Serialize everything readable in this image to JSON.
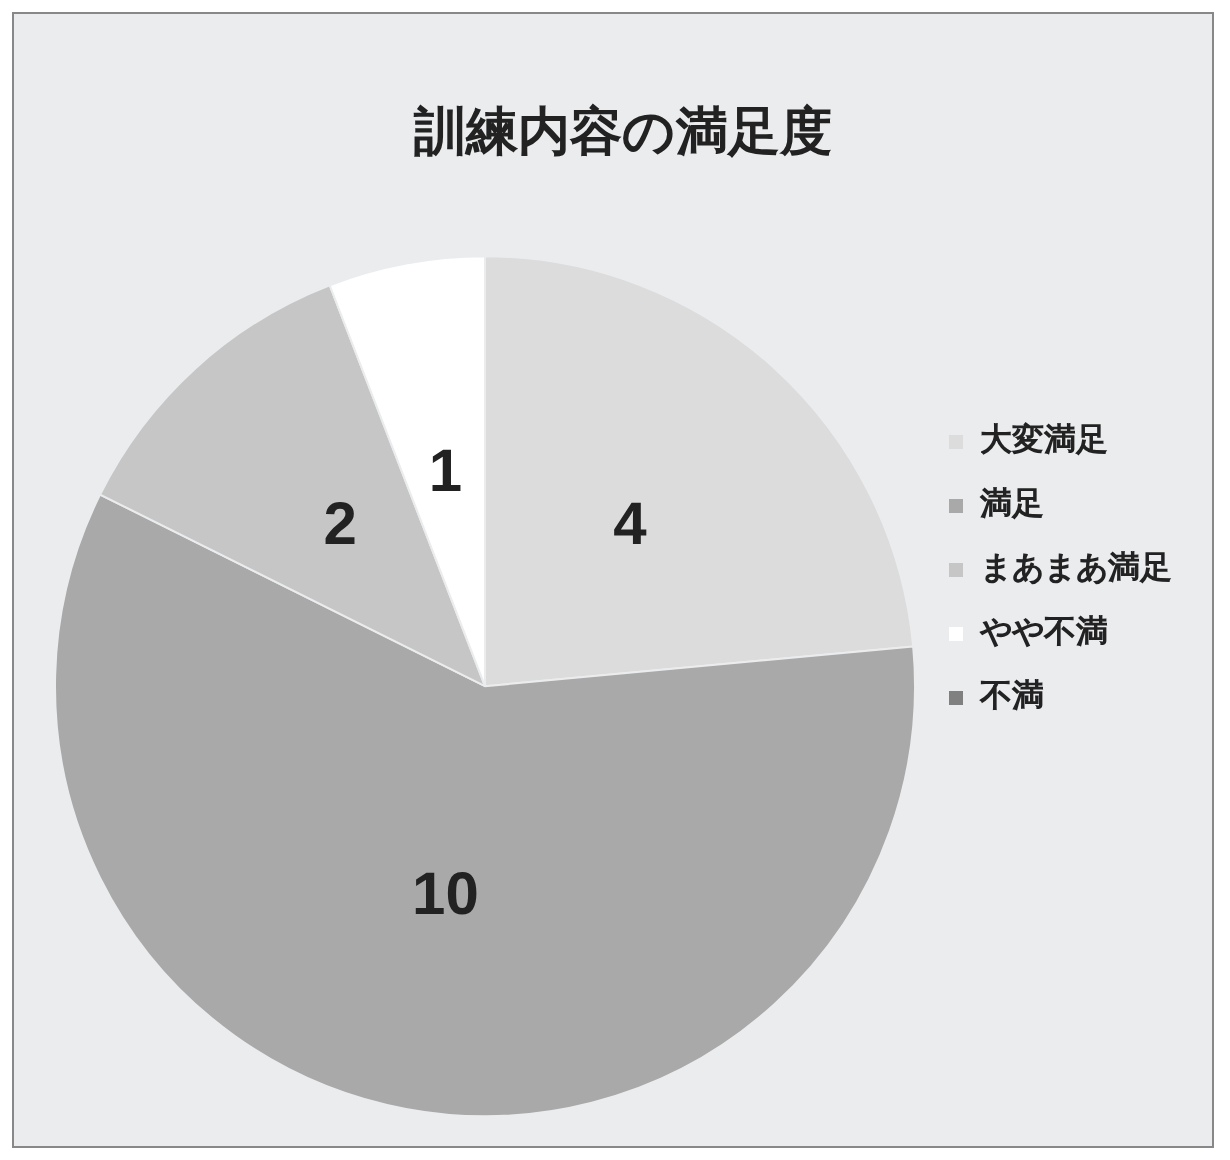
{
  "chart_data": {
    "type": "pie",
    "title": "訓練内容の満足度",
    "categories": [
      "大変満足",
      "満足",
      "まあまあ満足",
      "やや不満",
      "不満"
    ],
    "values": [
      4,
      10,
      2,
      1,
      0
    ],
    "colors": [
      "#dcdcdc",
      "#a9a9a9",
      "#c6c6c6",
      "#ffffff",
      "#808080"
    ],
    "value_labels": [
      "4",
      "10",
      "2",
      "1",
      null
    ],
    "legend": "right"
  }
}
